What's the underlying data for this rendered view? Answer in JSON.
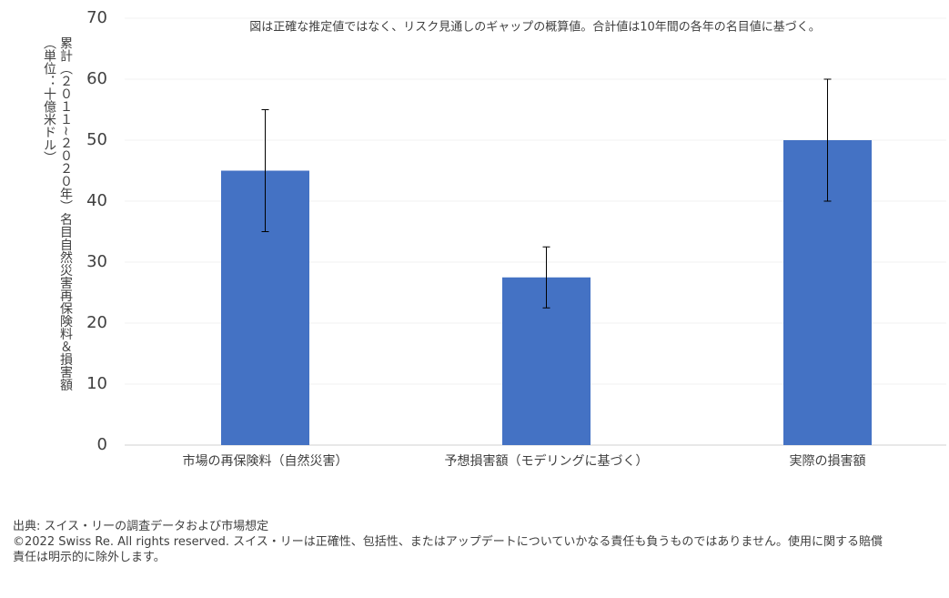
{
  "chart_data": {
    "type": "bar",
    "annotation": "図は正確な推定値ではなく、リスク見通しのギャップの概算値。合計値は10年間の各年の名目値に基づく。",
    "y_label": [
      "累計（２０１１~２０２０年）名目自然災害再保険料＆損害額",
      "（単位：十億米ドル）"
    ],
    "categories": [
      "市場の再保険料（自然災害）",
      "予想損害額（モデリングに基づく）",
      "実際の損害額"
    ],
    "values": [
      45,
      27.5,
      50
    ],
    "errors": [
      10,
      5,
      10
    ],
    "color": "#4472c4",
    "ylim": [
      0,
      70
    ],
    "yticks": [
      0,
      10,
      20,
      30,
      40,
      50,
      60,
      70
    ],
    "grid": true
  },
  "footer": {
    "source": "出典: スイス・リーの調査データおよび市場想定",
    "copyright": "©2022 Swiss Re. All rights reserved. スイス・リーは正確性、包括性、またはアップデートについていかなる責任も負うものではありません。使用に関する賠償責任は明示的に除外します。"
  }
}
